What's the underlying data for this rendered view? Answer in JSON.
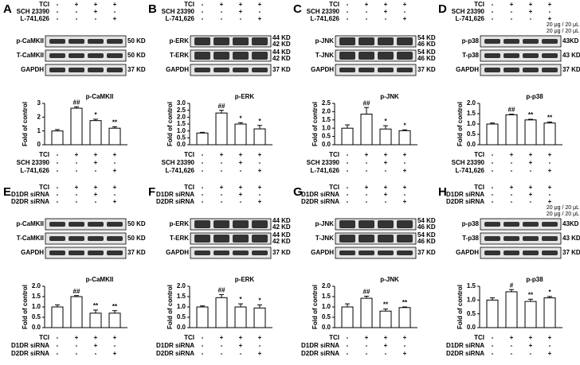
{
  "chart_data": [
    {
      "type": "bar",
      "panel": "A",
      "title": "p-CaMKII",
      "ylabel": "Fold of control",
      "treatments": [
        {
          "name": "TCI",
          "signs": [
            "-",
            "+",
            "+",
            "+"
          ]
        },
        {
          "name": "SCH 23390",
          "signs": [
            "-",
            "-",
            "+",
            "-"
          ]
        },
        {
          "name": "L-741,626",
          "signs": [
            "-",
            "-",
            "-",
            "+"
          ]
        }
      ],
      "blots": [
        {
          "label": "p-CaMKII",
          "kd": [
            "50 KD"
          ]
        },
        {
          "label": "T-CaMKII",
          "kd": [
            "50 KD"
          ]
        },
        {
          "label": "GAPDH",
          "kd": [
            "37 KD"
          ]
        }
      ],
      "values": [
        1.0,
        2.65,
        1.75,
        1.2
      ],
      "errors": [
        0.1,
        0.1,
        0.1,
        0.1
      ],
      "annotations": [
        null,
        "##",
        "*",
        "**"
      ],
      "ylim": [
        0,
        3
      ],
      "yticks": [
        0,
        1,
        2,
        3
      ]
    },
    {
      "type": "bar",
      "panel": "B",
      "title": "p-ERK",
      "ylabel": "Fold of control",
      "treatments": [
        {
          "name": "TCI",
          "signs": [
            "-",
            "+",
            "+",
            "+"
          ]
        },
        {
          "name": "SCH 23390",
          "signs": [
            "-",
            "-",
            "+",
            "-"
          ]
        },
        {
          "name": "L-741,626",
          "signs": [
            "-",
            "-",
            "-",
            "+"
          ]
        }
      ],
      "blots": [
        {
          "label": "p-ERK",
          "kd": [
            "44 KD",
            "42 KD"
          ]
        },
        {
          "label": "T-ERK",
          "kd": [
            "44 KD",
            "42 KD"
          ]
        },
        {
          "label": "GAPDH",
          "kd": [
            "37 KD"
          ]
        }
      ],
      "values": [
        0.85,
        2.3,
        1.5,
        1.15
      ],
      "errors": [
        0.05,
        0.2,
        0.1,
        0.25
      ],
      "annotations": [
        null,
        "##",
        "*",
        "*"
      ],
      "ylim": [
        0,
        3
      ],
      "yticks": [
        {
          "value": 0,
          "label": "0.0"
        },
        0.5,
        {
          "value": 1,
          "label": "1.0"
        },
        1.5,
        {
          "value": 2,
          "label": "2.0"
        },
        2.5,
        {
          "value": 3,
          "label": "3.0"
        }
      ]
    },
    {
      "type": "bar",
      "panel": "C",
      "title": "p-JNK",
      "ylabel": "Fold of control",
      "treatments": [
        {
          "name": "TCI",
          "signs": [
            "-",
            "+",
            "+",
            "+"
          ]
        },
        {
          "name": "SCH 23390",
          "signs": [
            "-",
            "-",
            "+",
            "-"
          ]
        },
        {
          "name": "L-741,626",
          "signs": [
            "-",
            "-",
            "-",
            "+"
          ]
        }
      ],
      "blots": [
        {
          "label": "p-JNK",
          "kd": [
            "54 KD",
            "46 KD"
          ]
        },
        {
          "label": "T-JNK",
          "kd": [
            "54 KD",
            "46 KD"
          ]
        },
        {
          "label": "GAPDH",
          "kd": [
            "37 KD"
          ]
        }
      ],
      "values": [
        1.0,
        1.85,
        0.95,
        0.85
      ],
      "errors": [
        0.2,
        0.4,
        0.2,
        0.05
      ],
      "annotations": [
        null,
        "##",
        "*",
        "*"
      ],
      "ylim": [
        0,
        2.5
      ],
      "yticks": [
        {
          "value": 0,
          "label": "0.0"
        },
        0.5,
        {
          "value": 1,
          "label": "1.0"
        },
        1.5,
        {
          "value": 2,
          "label": "2.0"
        },
        2.5
      ]
    },
    {
      "type": "bar",
      "panel": "D",
      "title": "p-p38",
      "ylabel": "Fold of control",
      "notes": [
        "20 μg / 20 μL",
        "20 μg / 20 μL"
      ],
      "treatments": [
        {
          "name": "TCI",
          "signs": [
            "-",
            "+",
            "+",
            "+"
          ]
        },
        {
          "name": "SCH 23390",
          "signs": [
            "-",
            "-",
            "+",
            "-"
          ]
        },
        {
          "name": "L-741,626",
          "signs": [
            "-",
            "-",
            "-",
            "+"
          ]
        }
      ],
      "blots": [
        {
          "label": "p-p38",
          "kd": [
            "43KD"
          ]
        },
        {
          "label": "T-p38",
          "kd": [
            "43 KD"
          ]
        },
        {
          "label": "GAPDH",
          "kd": [
            "37 KD"
          ]
        }
      ],
      "values": [
        1.0,
        1.45,
        1.2,
        1.05
      ],
      "errors": [
        0.05,
        0.03,
        0.03,
        0.05
      ],
      "annotations": [
        null,
        "##",
        "**",
        "**"
      ],
      "ylim": [
        0,
        2
      ],
      "yticks": [
        {
          "value": 0,
          "label": "0.0"
        },
        0.5,
        {
          "value": 1,
          "label": "1.0"
        },
        1.5,
        {
          "value": 2,
          "label": "2.0"
        }
      ]
    },
    {
      "type": "bar",
      "panel": "E",
      "title": "p-CaMKII",
      "ylabel": "Fold of control",
      "treatments": [
        {
          "name": "TCI",
          "signs": [
            "-",
            "+",
            "+",
            "+"
          ]
        },
        {
          "name": "D1DR siRNA",
          "signs": [
            "-",
            "-",
            "+",
            "-"
          ]
        },
        {
          "name": "D2DR siRNA",
          "signs": [
            "-",
            "-",
            "-",
            "+"
          ]
        }
      ],
      "blots": [
        {
          "label": "p-CaMKII",
          "kd": [
            "50 KD"
          ]
        },
        {
          "label": "T-CaMKII",
          "kd": [
            "50 KD"
          ]
        },
        {
          "label": "GAPDH",
          "kd": [
            "37 KD"
          ]
        }
      ],
      "values": [
        1.0,
        1.5,
        0.7,
        0.7
      ],
      "errors": [
        0.1,
        0.05,
        0.15,
        0.12
      ],
      "annotations": [
        null,
        "##",
        "**",
        "**"
      ],
      "ylim": [
        0,
        2
      ],
      "yticks": [
        {
          "value": 0,
          "label": "0.0"
        },
        0.5,
        {
          "value": 1,
          "label": "1.0"
        },
        1.5,
        {
          "value": 2,
          "label": "2.0"
        }
      ]
    },
    {
      "type": "bar",
      "panel": "F",
      "title": "p-ERK",
      "ylabel": "Fold of control",
      "treatments": [
        {
          "name": "TCI",
          "signs": [
            "-",
            "+",
            "+",
            "+"
          ]
        },
        {
          "name": "D1DR siRNA",
          "signs": [
            "-",
            "-",
            "+",
            "-"
          ]
        },
        {
          "name": "D2DR siRNA",
          "signs": [
            "-",
            "-",
            "-",
            "+"
          ]
        }
      ],
      "blots": [
        {
          "label": "p-ERK",
          "kd": [
            "44 KD",
            "42 KD"
          ]
        },
        {
          "label": "T-ERK",
          "kd": [
            "44 KD",
            "42 KD"
          ]
        },
        {
          "label": "GAPDH",
          "kd": [
            "37 KD"
          ]
        }
      ],
      "values": [
        1.0,
        1.45,
        1.0,
        0.95
      ],
      "errors": [
        0.05,
        0.15,
        0.15,
        0.15
      ],
      "annotations": [
        null,
        "##",
        "*",
        "*"
      ],
      "ylim": [
        0,
        2
      ],
      "yticks": [
        {
          "value": 0,
          "label": "0.0"
        },
        0.5,
        {
          "value": 1,
          "label": "1.0"
        },
        1.5,
        {
          "value": 2,
          "label": "2.0"
        }
      ]
    },
    {
      "type": "bar",
      "panel": "G",
      "title": "p-JNK",
      "ylabel": "Fold of control",
      "treatments": [
        {
          "name": "TCI",
          "signs": [
            "-",
            "+",
            "+",
            "+"
          ]
        },
        {
          "name": "D1DR siRNA",
          "signs": [
            "-",
            "-",
            "+",
            "-"
          ]
        },
        {
          "name": "D2DR siRNA",
          "signs": [
            "-",
            "-",
            "-",
            "+"
          ]
        }
      ],
      "blots": [
        {
          "label": "p-JNK",
          "kd": [
            "54 KD",
            "46 KD"
          ]
        },
        {
          "label": "T-JNK",
          "kd": [
            "54 KD",
            "46 KD"
          ]
        },
        {
          "label": "GAPDH",
          "kd": [
            "37 KD"
          ]
        }
      ],
      "values": [
        1.0,
        1.42,
        0.8,
        0.97
      ],
      "errors": [
        0.15,
        0.1,
        0.1,
        0.03
      ],
      "annotations": [
        null,
        "##",
        "**",
        "**"
      ],
      "ylim": [
        0,
        2
      ],
      "yticks": [
        {
          "value": 0,
          "label": "0.0"
        },
        0.5,
        {
          "value": 1,
          "label": "1.0"
        },
        1.5,
        {
          "value": 2,
          "label": "2.0"
        }
      ]
    },
    {
      "type": "bar",
      "panel": "H",
      "title": "p-p38",
      "ylabel": "Fold of control",
      "notes": [
        "20 μg / 20 μL",
        "20 μg / 20 μL"
      ],
      "treatments": [
        {
          "name": "TCI",
          "signs": [
            "-",
            "+",
            "+",
            "+"
          ]
        },
        {
          "name": "D1DR siRNA",
          "signs": [
            "-",
            "-",
            "+",
            "-"
          ]
        },
        {
          "name": "D2DR siRNA",
          "signs": [
            "-",
            "-",
            "-",
            "+"
          ]
        }
      ],
      "blots": [
        {
          "label": "p-p38",
          "kd": [
            "43KD"
          ]
        },
        {
          "label": "T-p38",
          "kd": [
            "43 KD"
          ]
        },
        {
          "label": "GAPDH",
          "kd": [
            "37 KD"
          ]
        }
      ],
      "values": [
        1.0,
        1.3,
        0.95,
        1.08
      ],
      "errors": [
        0.08,
        0.08,
        0.08,
        0.05
      ],
      "annotations": [
        null,
        "#",
        "**",
        "*"
      ],
      "ylim": [
        0,
        1.5
      ],
      "yticks": [
        {
          "value": 0,
          "label": "0.0"
        },
        0.5,
        {
          "value": 1,
          "label": "1.0"
        },
        1.5
      ]
    }
  ]
}
